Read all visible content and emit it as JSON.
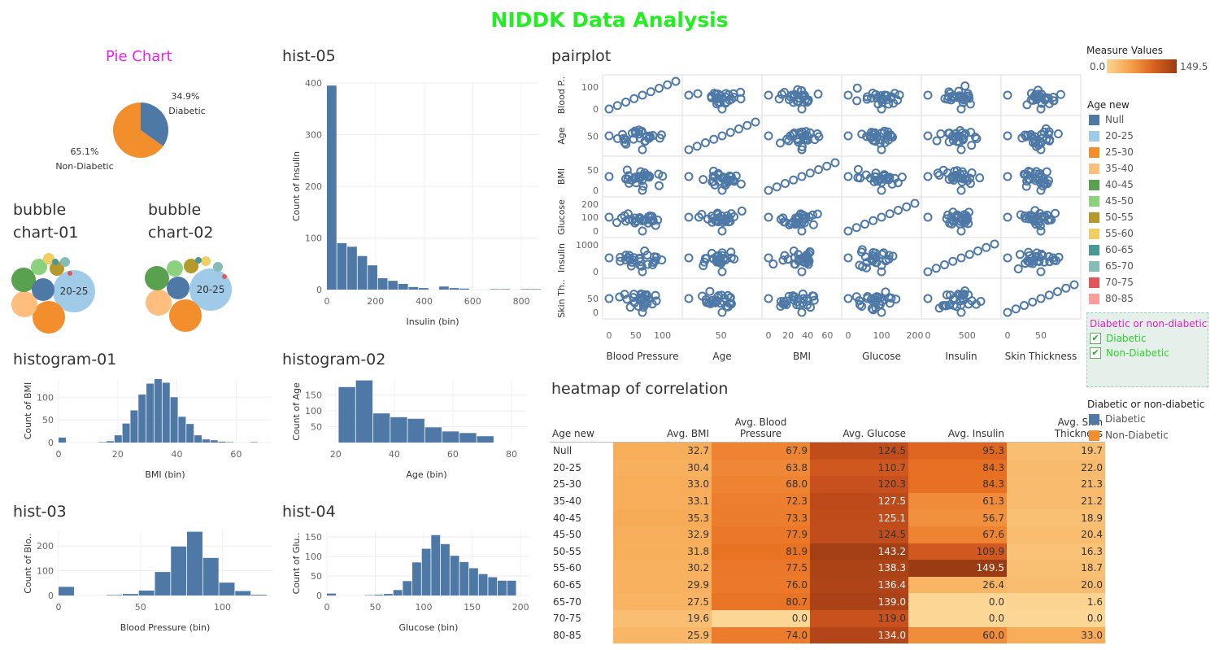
{
  "title": "NIDDK Data Analysis",
  "sections": {
    "pie": "Pie Chart",
    "bubble1": "bubble chart-01",
    "bubble2": "bubble chart-02",
    "histogram01": "histogram-01",
    "histogram02": "histogram-02",
    "hist03": "hist-03",
    "hist04": "hist-04",
    "hist05": "hist-05",
    "pairplot": "pairplot",
    "heatmap": "heatmap of correlation"
  },
  "colors": {
    "bar": "#4e79a7",
    "diabetic": "#4e79a7",
    "non_diabetic": "#f28e2b",
    "title": "#22ee22",
    "pie_title": "#ee22ee",
    "heat_low": "#fbd592",
    "heat_high": "#9b3b13"
  },
  "legends": {
    "measure_values": {
      "title": "Measure Values",
      "min": "0.0",
      "max": "149.5"
    },
    "age_new": {
      "title": "Age new",
      "items": [
        {
          "label": "Null",
          "color": "#4e79a7"
        },
        {
          "label": "20-25",
          "color": "#a0cbe8"
        },
        {
          "label": "25-30",
          "color": "#f28e2b"
        },
        {
          "label": "35-40",
          "color": "#ffbe7d"
        },
        {
          "label": "40-45",
          "color": "#59a14f"
        },
        {
          "label": "45-50",
          "color": "#8cd17d"
        },
        {
          "label": "50-55",
          "color": "#b6992d"
        },
        {
          "label": "55-60",
          "color": "#f1ce63"
        },
        {
          "label": "60-65",
          "color": "#499894"
        },
        {
          "label": "65-70",
          "color": "#86bcb6"
        },
        {
          "label": "70-75",
          "color": "#e15759"
        },
        {
          "label": "80-85",
          "color": "#ff9d9a"
        }
      ]
    },
    "filter": {
      "title": "Diabetic or non-diabetic",
      "options": [
        {
          "label": "Diabetic",
          "checked": "✔"
        },
        {
          "label": "Non-Diabetic",
          "checked": "✔"
        }
      ]
    },
    "diabetic_legend": {
      "title": "Diabetic or non-diabetic",
      "items": [
        {
          "label": "Diabetic",
          "color": "#4e79a7"
        },
        {
          "label": "Non-Diabetic",
          "color": "#f28e2b"
        }
      ]
    }
  },
  "chart_data": [
    {
      "id": "pie",
      "type": "pie",
      "title": "Pie Chart",
      "slices": [
        {
          "label": "Diabetic",
          "value": 34.9,
          "pct_label": "34.9%",
          "color": "#4e79a7"
        },
        {
          "label": "Non-Diabetic",
          "value": 65.1,
          "pct_label": "65.1%",
          "color": "#f28e2b"
        }
      ]
    },
    {
      "id": "bubble1",
      "type": "scatter",
      "title": "bubble chart-01",
      "label": "20-25"
    },
    {
      "id": "bubble2",
      "type": "scatter",
      "title": "bubble chart-02",
      "label": "20-25"
    },
    {
      "id": "histogram01",
      "type": "bar",
      "title": "histogram-01",
      "xlabel": "BMI (bin)",
      "ylabel": "Count of BMI",
      "bin_width": 2.7,
      "x_start": 0,
      "xlim": [
        0,
        72
      ],
      "ylim": [
        0,
        140
      ],
      "xticks": [
        0,
        20,
        40,
        60
      ],
      "yticks": [
        0,
        50,
        100
      ],
      "bins": [
        {
          "x": 0,
          "v": 11
        },
        {
          "x": 13.5,
          "v": 1
        },
        {
          "x": 16.2,
          "v": 3
        },
        {
          "x": 18.9,
          "v": 16
        },
        {
          "x": 21.6,
          "v": 42
        },
        {
          "x": 24.3,
          "v": 71
        },
        {
          "x": 27,
          "v": 106
        },
        {
          "x": 29.7,
          "v": 130
        },
        {
          "x": 32.4,
          "v": 140
        },
        {
          "x": 35.1,
          "v": 132
        },
        {
          "x": 37.8,
          "v": 100
        },
        {
          "x": 40.5,
          "v": 57
        },
        {
          "x": 43.2,
          "v": 41
        },
        {
          "x": 45.9,
          "v": 16
        },
        {
          "x": 48.6,
          "v": 7
        },
        {
          "x": 51.3,
          "v": 5
        },
        {
          "x": 54,
          "v": 2
        },
        {
          "x": 56.7,
          "v": 1
        },
        {
          "x": 64.8,
          "v": 1
        }
      ]
    },
    {
      "id": "histogram02",
      "type": "bar",
      "title": "histogram-02",
      "xlabel": "Age (bin)",
      "ylabel": "Count of Age",
      "bin_width": 5.9,
      "xlim": [
        17,
        85
      ],
      "ylim": [
        0,
        195
      ],
      "xticks": [
        20,
        40,
        60,
        80
      ],
      "yticks": [
        50,
        100,
        150
      ],
      "bins": [
        {
          "x": 21,
          "v": 175
        },
        {
          "x": 26.9,
          "v": 196
        },
        {
          "x": 32.8,
          "v": 92
        },
        {
          "x": 38.7,
          "v": 80
        },
        {
          "x": 44.6,
          "v": 75
        },
        {
          "x": 50.5,
          "v": 48
        },
        {
          "x": 56.4,
          "v": 35
        },
        {
          "x": 62.3,
          "v": 30
        },
        {
          "x": 68.2,
          "v": 20
        }
      ]
    },
    {
      "id": "hist03",
      "type": "bar",
      "title": "hist-03",
      "xlabel": "Blood Pressure (bin)",
      "ylabel": "Count of Blo..",
      "bin_width": 9.8,
      "xlim": [
        0,
        130
      ],
      "ylim": [
        0,
        260
      ],
      "xticks": [
        0,
        50,
        100
      ],
      "yticks": [
        0,
        100,
        200
      ],
      "bins": [
        {
          "x": 0,
          "v": 35
        },
        {
          "x": 29.4,
          "v": 2
        },
        {
          "x": 39.2,
          "v": 6
        },
        {
          "x": 49,
          "v": 20
        },
        {
          "x": 58.8,
          "v": 95
        },
        {
          "x": 68.6,
          "v": 198
        },
        {
          "x": 78.4,
          "v": 258
        },
        {
          "x": 88.2,
          "v": 152
        },
        {
          "x": 98,
          "v": 52
        },
        {
          "x": 107.8,
          "v": 18
        },
        {
          "x": 117.6,
          "v": 3
        }
      ]
    },
    {
      "id": "hist04",
      "type": "bar",
      "title": "hist-04",
      "xlabel": "Glucose (bin)",
      "ylabel": "Count of Glu..",
      "bin_width": 9.8,
      "xlim": [
        0,
        210
      ],
      "ylim": [
        0,
        165
      ],
      "xticks": [
        0,
        50,
        100,
        150,
        200
      ],
      "yticks": [
        0,
        50,
        100,
        150
      ],
      "bins": [
        {
          "x": 0,
          "v": 5
        },
        {
          "x": 39.2,
          "v": 1
        },
        {
          "x": 49,
          "v": 2
        },
        {
          "x": 58.8,
          "v": 4
        },
        {
          "x": 68.6,
          "v": 14
        },
        {
          "x": 78.4,
          "v": 37
        },
        {
          "x": 88.2,
          "v": 85
        },
        {
          "x": 98,
          "v": 120
        },
        {
          "x": 107.8,
          "v": 155
        },
        {
          "x": 117.6,
          "v": 132
        },
        {
          "x": 127.4,
          "v": 102
        },
        {
          "x": 137.2,
          "v": 86
        },
        {
          "x": 147,
          "v": 70
        },
        {
          "x": 156.8,
          "v": 55
        },
        {
          "x": 166.6,
          "v": 47
        },
        {
          "x": 176.4,
          "v": 38
        },
        {
          "x": 186.2,
          "v": 38
        }
      ]
    },
    {
      "id": "hist05",
      "type": "bar",
      "title": "hist-05",
      "xlabel": "Insulin (bin)",
      "ylabel": "Count of Insulin",
      "bin_width": 42,
      "xlim": [
        0,
        870
      ],
      "ylim": [
        0,
        400
      ],
      "xticks": [
        0,
        200,
        400,
        600,
        800
      ],
      "yticks": [
        0,
        100,
        200,
        300,
        400
      ],
      "bins": [
        {
          "x": 0,
          "v": 395
        },
        {
          "x": 42,
          "v": 90
        },
        {
          "x": 84,
          "v": 83
        },
        {
          "x": 126,
          "v": 65
        },
        {
          "x": 168,
          "v": 47
        },
        {
          "x": 210,
          "v": 22
        },
        {
          "x": 252,
          "v": 17
        },
        {
          "x": 294,
          "v": 11
        },
        {
          "x": 336,
          "v": 5
        },
        {
          "x": 378,
          "v": 3
        },
        {
          "x": 462,
          "v": 6
        },
        {
          "x": 504,
          "v": 3
        },
        {
          "x": 546,
          "v": 2
        },
        {
          "x": 672,
          "v": 1
        },
        {
          "x": 714,
          "v": 1
        },
        {
          "x": 798,
          "v": 1
        },
        {
          "x": 840,
          "v": 1
        }
      ]
    },
    {
      "id": "pairplot",
      "type": "scatter",
      "title": "pairplot",
      "variables": [
        {
          "name": "Blood Pressure",
          "row_label": "Blood P..",
          "xticks": [
            0,
            50,
            100
          ],
          "yticks": [
            0,
            100
          ],
          "range": [
            0,
            125
          ]
        },
        {
          "name": "Age",
          "row_label": "Age",
          "xticks": [
            50
          ],
          "yticks": [
            50
          ],
          "range": [
            20,
            82
          ]
        },
        {
          "name": "BMI",
          "row_label": "BMI",
          "xticks": [
            0,
            20,
            40,
            60
          ],
          "yticks": [
            0,
            50
          ],
          "range": [
            0,
            68
          ]
        },
        {
          "name": "Glucose",
          "row_label": "Glucose",
          "xticks": [
            0,
            100,
            200
          ],
          "yticks": [
            0,
            100,
            200
          ],
          "range": [
            0,
            200
          ]
        },
        {
          "name": "Insulin",
          "row_label": "Insulin",
          "xticks": [
            0,
            500
          ],
          "yticks": [
            0,
            1000
          ],
          "range": [
            0,
            850
          ]
        },
        {
          "name": "Skin Thickness",
          "row_label": "Skin Th..",
          "xticks": [
            0,
            50
          ],
          "yticks": [
            0,
            50
          ],
          "range": [
            0,
            100
          ]
        }
      ]
    },
    {
      "id": "heatmap",
      "type": "heatmap",
      "title": "heatmap of correlation",
      "row_header": "Age new",
      "columns": [
        "Avg. BMI",
        "Avg. Blood Pressure",
        "Avg. Glucose",
        "Avg. Insulin",
        "Avg. Skin Thickness"
      ],
      "rows": [
        {
          "label": "Null",
          "values": [
            32.7,
            67.9,
            124.5,
            95.3,
            19.7
          ]
        },
        {
          "label": "20-25",
          "values": [
            30.4,
            63.8,
            110.7,
            84.3,
            22.0
          ]
        },
        {
          "label": "25-30",
          "values": [
            33.0,
            68.0,
            120.3,
            84.3,
            21.3
          ]
        },
        {
          "label": "35-40",
          "values": [
            33.1,
            72.3,
            127.5,
            61.3,
            21.2
          ]
        },
        {
          "label": "40-45",
          "values": [
            35.3,
            73.3,
            125.1,
            56.7,
            18.9
          ]
        },
        {
          "label": "45-50",
          "values": [
            32.9,
            77.9,
            124.5,
            67.6,
            20.4
          ]
        },
        {
          "label": "50-55",
          "values": [
            31.8,
            81.9,
            143.2,
            109.9,
            16.3
          ]
        },
        {
          "label": "55-60",
          "values": [
            30.2,
            77.5,
            138.3,
            149.5,
            18.7
          ]
        },
        {
          "label": "60-65",
          "values": [
            29.9,
            76.0,
            136.4,
            26.4,
            20.0
          ]
        },
        {
          "label": "65-70",
          "values": [
            27.5,
            80.7,
            139.0,
            0.0,
            1.6
          ]
        },
        {
          "label": "70-75",
          "values": [
            19.6,
            0.0,
            119.0,
            0.0,
            0.0
          ]
        },
        {
          "label": "80-85",
          "values": [
            25.9,
            74.0,
            134.0,
            60.0,
            33.0
          ]
        }
      ],
      "min": 0,
      "max": 149.5
    }
  ]
}
